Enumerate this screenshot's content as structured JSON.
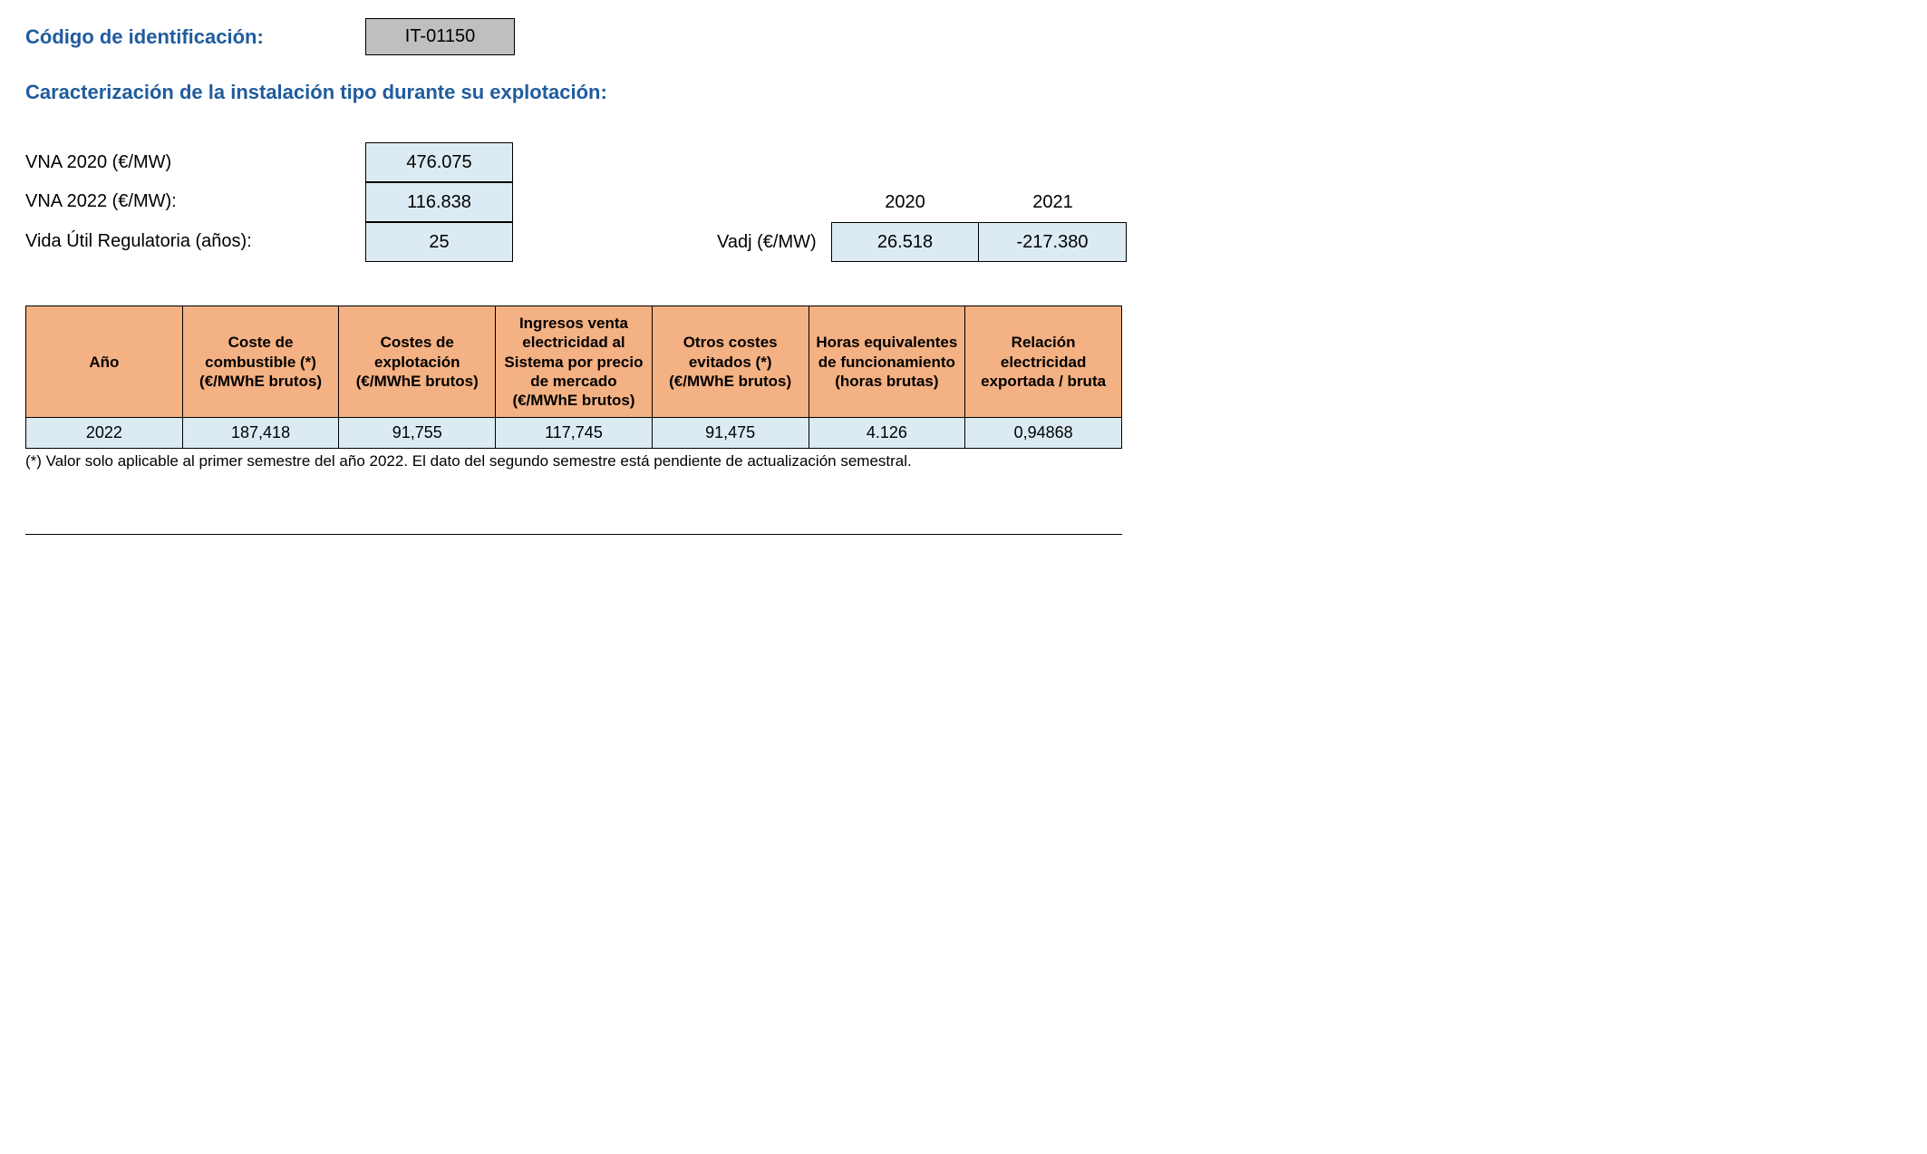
{
  "header": {
    "code_label": "Código de identificación:",
    "code_value": "IT-01150",
    "section_title": "Caracterización de la instalación tipo durante su explotación:"
  },
  "params": {
    "rows": [
      {
        "label": "VNA 2020 (€/MW)",
        "value": "476.075"
      },
      {
        "label": "VNA 2022 (€/MW):",
        "value": "116.838"
      },
      {
        "label": "Vida Útil Regulatoria (años):",
        "value": "25"
      }
    ]
  },
  "vadj": {
    "label": "Vadj (€/MW)",
    "years": [
      "2020",
      "2021"
    ],
    "values": [
      "26.518",
      "-217.380"
    ]
  },
  "table": {
    "columns": [
      "Año",
      "Coste de combustible (*) (€/MWhE brutos)",
      "Costes de explotación (€/MWhE brutos)",
      "Ingresos venta electricidad al Sistema por precio de mercado (€/MWhE brutos)",
      "Otros costes evitados (*) (€/MWhE brutos)",
      "Horas equivalentes de funcionamiento (horas brutas)",
      "Relación electricidad exportada / bruta"
    ],
    "rows": [
      [
        "2022",
        "187,418",
        "91,755",
        "117,745",
        "91,475",
        "4.126",
        "0,94868"
      ]
    ],
    "header_bg": "#f4b183",
    "row_bg": "#dcebf3",
    "border_color": "#000000"
  },
  "footnote": "(*) Valor solo aplicable al primer semestre del año 2022. El dato del segundo semestre está pendiente de actualización semestral."
}
